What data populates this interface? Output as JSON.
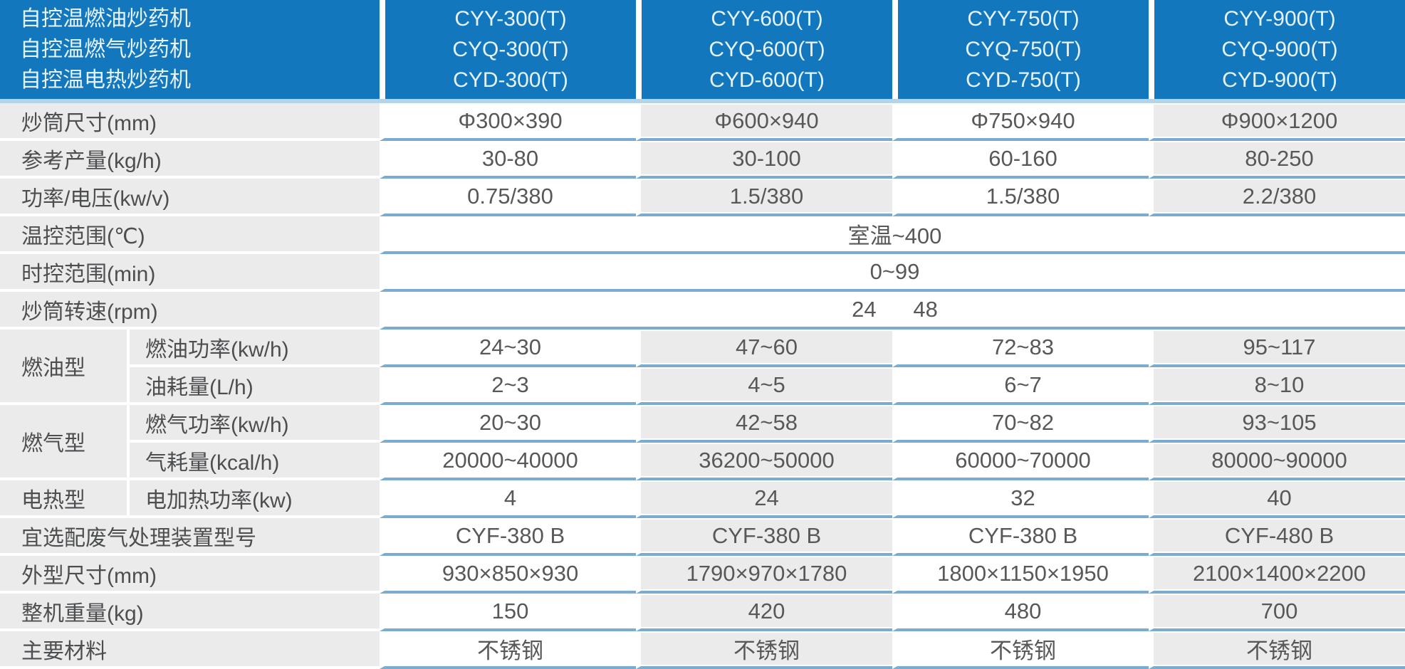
{
  "header": {
    "title_lines": [
      "自控温燃油炒药机",
      "自控温燃气炒药机",
      "自控温电热炒药机"
    ],
    "models": [
      [
        "CYY-300(T)",
        "CYQ-300(T)",
        "CYD-300(T)"
      ],
      [
        "CYY-600(T)",
        "CYQ-600(T)",
        "CYD-600(T)"
      ],
      [
        "CYY-750(T)",
        "CYQ-750(T)",
        "CYD-750(T)"
      ],
      [
        "CYY-900(T)",
        "CYQ-900(T)",
        "CYD-900(T)"
      ]
    ]
  },
  "rows": [
    {
      "label": "炒筒尺寸(mm)",
      "values": [
        "Φ300×390",
        "Φ600×940",
        "Φ750×940",
        "Φ900×1200"
      ]
    },
    {
      "label": "参考产量(kg/h)",
      "values": [
        "30-80",
        "30-100",
        "60-160",
        "80-250"
      ]
    },
    {
      "label": "功率/电压(kw/v)",
      "values": [
        "0.75/380",
        "1.5/380",
        "1.5/380",
        "2.2/380"
      ]
    },
    {
      "label": "温控范围(℃)",
      "merged": "室温~400"
    },
    {
      "label": "时控范围(min)",
      "merged": "0~99"
    },
    {
      "label": "炒筒转速(rpm)",
      "merged": "24      48"
    },
    {
      "group": {
        "label": "燃油型",
        "span": 2
      },
      "label": "燃油功率(kw/h)",
      "values": [
        "24~30",
        "47~60",
        "72~83",
        "95~117"
      ]
    },
    {
      "in_group": true,
      "label": "油耗量(L/h)",
      "values": [
        "2~3",
        "4~5",
        "6~7",
        "8~10"
      ]
    },
    {
      "group": {
        "label": "燃气型",
        "span": 2
      },
      "label": "燃气功率(kw/h)",
      "values": [
        "20~30",
        "42~58",
        "70~82",
        "93~105"
      ]
    },
    {
      "in_group": true,
      "label": "气耗量(kcal/h)",
      "values": [
        "20000~40000",
        "36200~50000",
        "60000~70000",
        "80000~90000"
      ]
    },
    {
      "group": {
        "label": "电热型",
        "span": 1
      },
      "label": "电加热功率(kw)",
      "values": [
        "4",
        "24",
        "32",
        "40"
      ]
    },
    {
      "label": "宜选配废气处理装置型号",
      "values": [
        "CYF-380 B",
        "CYF-380 B",
        "CYF-380 B",
        "CYF-480 B"
      ]
    },
    {
      "label": "外型尺寸(mm)",
      "values": [
        "930×850×930",
        "1790×970×1780",
        "1800×1150×1950",
        "2100×1400×2200"
      ]
    },
    {
      "label": "整机重量(kg)",
      "values": [
        "150",
        "420",
        "480",
        "700"
      ]
    },
    {
      "label": "主要材料",
      "values": [
        "不锈钢",
        "不锈钢",
        "不锈钢",
        "不锈钢"
      ]
    }
  ],
  "colors": {
    "header_bg": "#1377BD",
    "header_text": "#E6F3FB",
    "header_band": "#B5D4EA",
    "label_bg": "#EBEBEB",
    "label_text": "#4C4E50",
    "cell_bg": "#FFFFFF",
    "cell_alt_bg": "#EBEBEB",
    "divider": "#7AACD0",
    "value_text": "#57585A"
  }
}
